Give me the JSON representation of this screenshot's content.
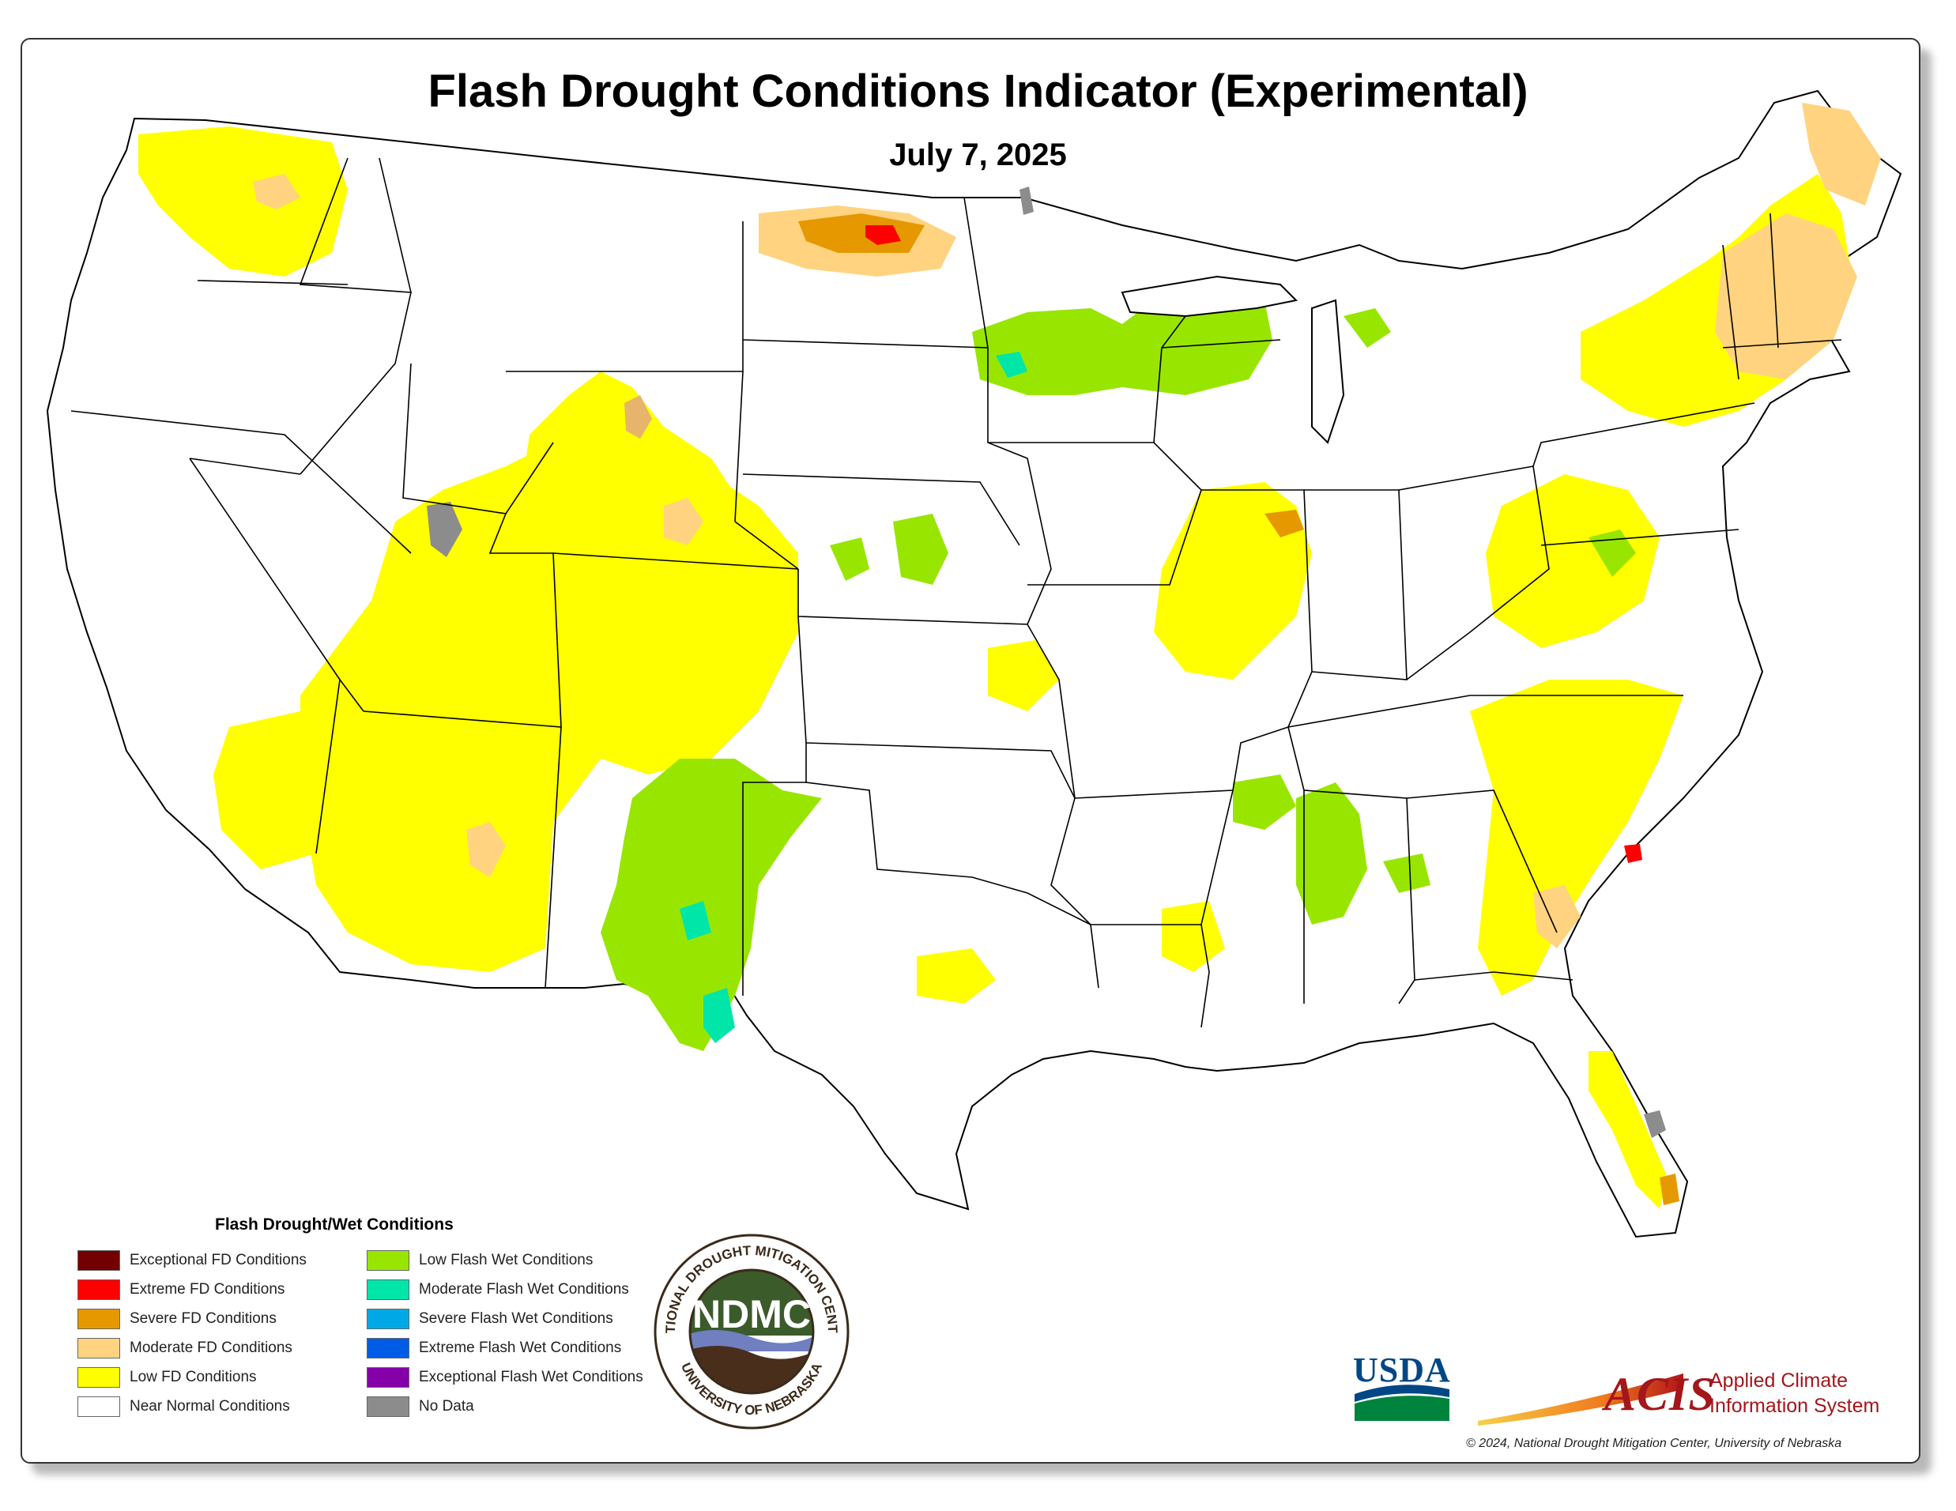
{
  "title": "Flash Drought Conditions Indicator (Experimental)",
  "date": "July 7, 2025",
  "legend": {
    "title": "Flash Drought/Wet Conditions",
    "left_items": [
      {
        "label": "Exceptional FD Conditions",
        "color": "#730000"
      },
      {
        "label": "Extreme FD Conditions",
        "color": "#ff0000"
      },
      {
        "label": "Severe FD Conditions",
        "color": "#e69800"
      },
      {
        "label": "Moderate FD Conditions",
        "color": "#ffd37f"
      },
      {
        "label": "Low FD Conditions",
        "color": "#ffff00"
      },
      {
        "label": "Near Normal Conditions",
        "color": "#ffffff"
      }
    ],
    "right_items": [
      {
        "label": "Low Flash Wet Conditions",
        "color": "#98e600"
      },
      {
        "label": "Moderate Flash Wet Conditions",
        "color": "#00e6a9"
      },
      {
        "label": "Severe Flash Wet Conditions",
        "color": "#00a9e6"
      },
      {
        "label": "Extreme Flash Wet Conditions",
        "color": "#005ce6"
      },
      {
        "label": "Exceptional Flash Wet Conditions",
        "color": "#8400a8"
      },
      {
        "label": "No Data",
        "color": "#8c8c8c"
      }
    ]
  },
  "logos": {
    "ndmc": {
      "center_text": "NDMC",
      "ring_top": "NATIONAL DROUGHT MITIGATION CENTER",
      "ring_bottom": "UNIVERSITY OF NEBRASKA"
    },
    "usda": "USDA",
    "acis": {
      "mark": "ACIS",
      "line1": "Applied Climate",
      "line2": "Information System"
    }
  },
  "copyright": "© 2024, National Drought Mitigation Center, University of Nebraska",
  "colors": {
    "low_fd": "#ffff00",
    "moderate_fd": "#ffd37f",
    "severe_fd": "#e69800",
    "extreme_fd": "#ff0000",
    "low_wet": "#98e600",
    "moderate_wet": "#00e6a9",
    "no_data": "#8c8c8c"
  }
}
